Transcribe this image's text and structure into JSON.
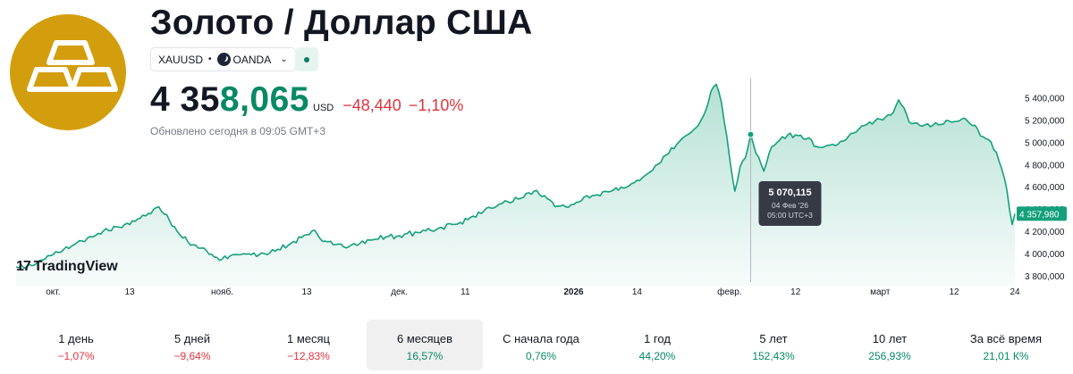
{
  "header": {
    "title": "Золото / Доллар США",
    "symbol": "XAUUSD",
    "exchange": "OANDA",
    "price_main": "4 35",
    "price_tail": "8,065",
    "currency": "USD",
    "change_abs": "−48,440",
    "change_pct": "−1,10%",
    "updated": "Обновлено сегодня в 09:05 GMT+3"
  },
  "branding": {
    "tradingview": "TradingView"
  },
  "colors": {
    "line": "#14a07c",
    "positive": "#088966",
    "negative": "#e0343f",
    "logo_bg": "#d39e0d"
  },
  "chart_data": {
    "type": "area",
    "title": "Золото / Доллар США",
    "xlabel": "",
    "ylabel": "USD",
    "ylim": [
      3700000,
      5600000
    ],
    "y_ticks": [
      "5 400,000",
      "5 200,000",
      "5 000,000",
      "4 800,000",
      "4 600,000",
      "4 400,000",
      "4 200,000",
      "4 000,000",
      "3 800,000"
    ],
    "y_tick_values": [
      5400000,
      5200000,
      5000000,
      4800000,
      4600000,
      4400000,
      4200000,
      4000000,
      3800000
    ],
    "x_ticks": [
      {
        "label": "окт.",
        "i": 14,
        "bold": false
      },
      {
        "label": "13",
        "i": 43,
        "bold": false
      },
      {
        "label": "нояб.",
        "i": 78,
        "bold": false
      },
      {
        "label": "13",
        "i": 110,
        "bold": false
      },
      {
        "label": "дек.",
        "i": 145,
        "bold": false
      },
      {
        "label": "11",
        "i": 170,
        "bold": false
      },
      {
        "label": "2026",
        "i": 211,
        "bold": true
      },
      {
        "label": "14",
        "i": 235,
        "bold": false
      },
      {
        "label": "февр.",
        "i": 270,
        "bold": false
      },
      {
        "label": "12",
        "i": 295,
        "bold": false
      },
      {
        "label": "март",
        "i": 327,
        "bold": false
      },
      {
        "label": "12",
        "i": 355,
        "bold": false
      },
      {
        "label": "24",
        "i": 378,
        "bold": false
      }
    ],
    "x_index_max": 378,
    "keypoints": [
      [
        0,
        3880000
      ],
      [
        6,
        3890000
      ],
      [
        14,
        3990000
      ],
      [
        22,
        4080000
      ],
      [
        30,
        4160000
      ],
      [
        38,
        4240000
      ],
      [
        45,
        4290000
      ],
      [
        50,
        4360000
      ],
      [
        54,
        4420000
      ],
      [
        58,
        4300000
      ],
      [
        63,
        4140000
      ],
      [
        67,
        4080000
      ],
      [
        71,
        4050000
      ],
      [
        75,
        3970000
      ],
      [
        78,
        3950000
      ],
      [
        84,
        3990000
      ],
      [
        92,
        3990000
      ],
      [
        98,
        4020000
      ],
      [
        105,
        4110000
      ],
      [
        110,
        4170000
      ],
      [
        113,
        4210000
      ],
      [
        116,
        4110000
      ],
      [
        120,
        4080000
      ],
      [
        124,
        4060000
      ],
      [
        128,
        4090000
      ],
      [
        134,
        4120000
      ],
      [
        140,
        4150000
      ],
      [
        145,
        4160000
      ],
      [
        152,
        4190000
      ],
      [
        160,
        4230000
      ],
      [
        168,
        4280000
      ],
      [
        176,
        4360000
      ],
      [
        184,
        4450000
      ],
      [
        190,
        4490000
      ],
      [
        196,
        4560000
      ],
      [
        200,
        4520000
      ],
      [
        204,
        4420000
      ],
      [
        208,
        4420000
      ],
      [
        212,
        4460000
      ],
      [
        218,
        4520000
      ],
      [
        226,
        4570000
      ],
      [
        232,
        4610000
      ],
      [
        238,
        4700000
      ],
      [
        244,
        4820000
      ],
      [
        250,
        4980000
      ],
      [
        255,
        5080000
      ],
      [
        260,
        5230000
      ],
      [
        263,
        5460000
      ],
      [
        265,
        5520000
      ],
      [
        267,
        5350000
      ],
      [
        269,
        5050000
      ],
      [
        271,
        4700000
      ],
      [
        272,
        4560000
      ],
      [
        274,
        4780000
      ],
      [
        276,
        4860000
      ],
      [
        278,
        5070000
      ],
      [
        280,
        4900000
      ],
      [
        283,
        4740000
      ],
      [
        286,
        4960000
      ],
      [
        290,
        5050000
      ],
      [
        296,
        5060000
      ],
      [
        300,
        5040000
      ],
      [
        303,
        4960000
      ],
      [
        310,
        4970000
      ],
      [
        316,
        5080000
      ],
      [
        322,
        5160000
      ],
      [
        328,
        5200000
      ],
      [
        332,
        5270000
      ],
      [
        334,
        5380000
      ],
      [
        336,
        5310000
      ],
      [
        338,
        5180000
      ],
      [
        342,
        5150000
      ],
      [
        346,
        5140000
      ],
      [
        350,
        5160000
      ],
      [
        354,
        5180000
      ],
      [
        358,
        5210000
      ],
      [
        362,
        5150000
      ],
      [
        366,
        5050000
      ],
      [
        369,
        5000000
      ],
      [
        372,
        4830000
      ],
      [
        374,
        4680000
      ],
      [
        375,
        4570000
      ],
      [
        376,
        4390000
      ],
      [
        377,
        4260000
      ],
      [
        378,
        4357980
      ]
    ],
    "tooltip": {
      "i": 278,
      "value": 5070115,
      "value_label": "5 070,115",
      "date": "04 Фев '26",
      "time": "05:00 UTC+3"
    },
    "last_value": 4357980,
    "last_value_label": "4 357,980"
  },
  "periods": [
    {
      "label": "1 день",
      "value": "−1,07%",
      "sign": "neg",
      "active": false
    },
    {
      "label": "5 дней",
      "value": "−9,64%",
      "sign": "neg",
      "active": false
    },
    {
      "label": "1 месяц",
      "value": "−12,83%",
      "sign": "neg",
      "active": false
    },
    {
      "label": "6 месяцев",
      "value": "16,57%",
      "sign": "pos",
      "active": true
    },
    {
      "label": "С начала года",
      "value": "0,76%",
      "sign": "pos",
      "active": false
    },
    {
      "label": "1 год",
      "value": "44,20%",
      "sign": "pos",
      "active": false
    },
    {
      "label": "5 лет",
      "value": "152,43%",
      "sign": "pos",
      "active": false
    },
    {
      "label": "10 лет",
      "value": "256,93%",
      "sign": "pos",
      "active": false
    },
    {
      "label": "За всё время",
      "value": "21,01 К%",
      "sign": "pos",
      "active": false
    }
  ]
}
